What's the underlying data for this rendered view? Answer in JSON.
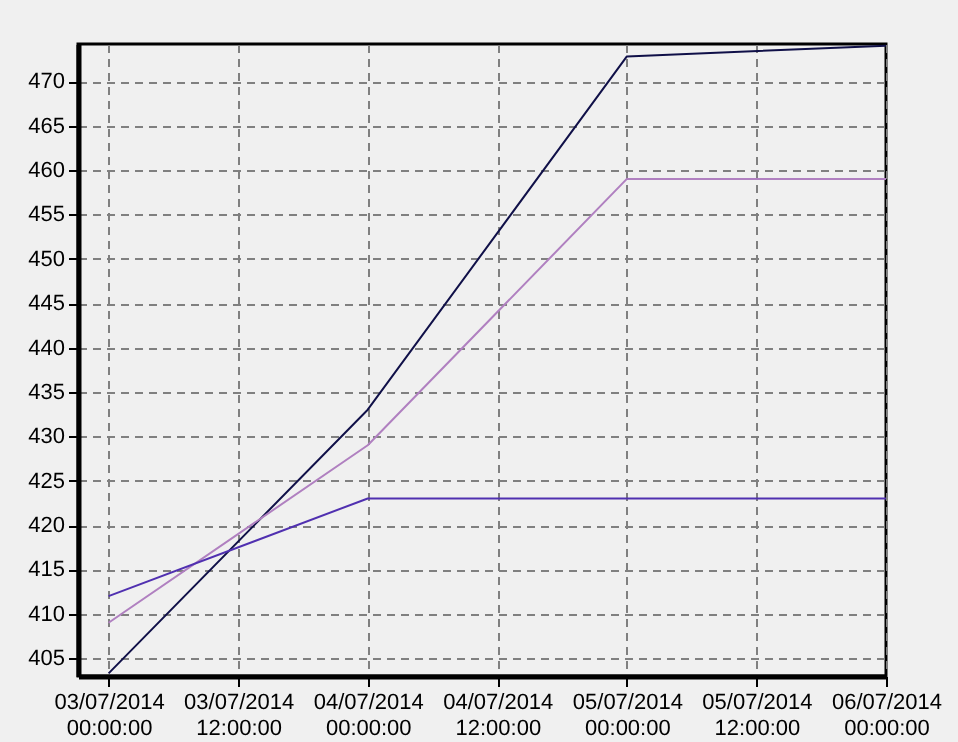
{
  "chart_data": {
    "type": "line",
    "x": [
      "2014-07-03T00:00",
      "2014-07-04T00:00",
      "2014-07-05T00:00",
      "2014-07-06T00:00"
    ],
    "series": [
      {
        "color": "#101048",
        "values": [
          403.3,
          433,
          472.8,
          474
        ]
      },
      {
        "color": "#b080c0",
        "values": [
          409,
          429,
          459,
          459
        ]
      },
      {
        "color": "#5030b0",
        "values": [
          412,
          423,
          423,
          423
        ]
      }
    ],
    "xlim": [
      "2014-07-02T21:10",
      "2014-07-06T00:00"
    ],
    "xticks": [
      {
        "value": "2014-07-03T00:00",
        "label": "03/07/2014 00:00:00"
      },
      {
        "value": "2014-07-03T12:00",
        "label": "03/07/2014 12:00:00"
      },
      {
        "value": "2014-07-04T00:00",
        "label": "04/07/2014 00:00:00"
      },
      {
        "value": "2014-07-04T12:00",
        "label": "04/07/2014 12:00:00"
      },
      {
        "value": "2014-07-05T00:00",
        "label": "05/07/2014 00:00:00"
      },
      {
        "value": "2014-07-05T12:00",
        "label": "05/07/2014 12:00:00"
      },
      {
        "value": "2014-07-06T00:00",
        "label": "06/07/2014 00:00:00"
      }
    ],
    "ylim": [
      403,
      474.2
    ],
    "yticks": [
      405,
      410,
      415,
      420,
      425,
      430,
      435,
      440,
      445,
      450,
      455,
      460,
      465,
      470
    ],
    "grid": true,
    "marker": "none",
    "line_style": "solid"
  }
}
